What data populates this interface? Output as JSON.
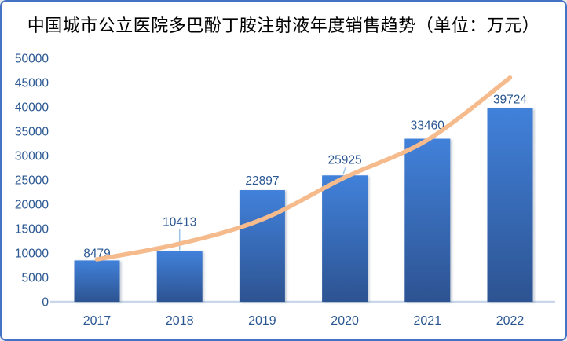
{
  "chart_data": {
    "type": "bar",
    "title": "中国城市公立医院多巴酚丁胺注射液年度销售趋势（单位：万元）",
    "unit": "万元",
    "categories": [
      "2017",
      "2018",
      "2019",
      "2020",
      "2021",
      "2022"
    ],
    "series": [
      {
        "name": "年度销售额",
        "type": "bar",
        "values": [
          8479,
          10413,
          22897,
          25925,
          33460,
          39724
        ]
      },
      {
        "name": "趋势线",
        "type": "line",
        "values": [
          8700,
          11900,
          16900,
          25500,
          33200,
          46000
        ]
      }
    ],
    "data_labels": [
      "8479",
      "10413",
      "22897",
      "25925",
      "33460",
      "39724"
    ],
    "ylim": [
      0,
      50000
    ],
    "ytick_step": 5000,
    "yticks": [
      "0",
      "5000",
      "10000",
      "15000",
      "20000",
      "25000",
      "30000",
      "35000",
      "40000",
      "45000",
      "50000"
    ],
    "grid": false,
    "legend": "none",
    "colors": {
      "bar_gradient_top": "#4181DA",
      "bar_gradient_bottom": "#2D5391",
      "trend_line": "#F6BB8D",
      "label_text": "#2A5792",
      "axis_line": "#C8D8EA",
      "leader_line": "#9DC3E6",
      "frame_border": "#4472C4",
      "title_text": "#000000",
      "background": "#FFFFFF"
    }
  }
}
